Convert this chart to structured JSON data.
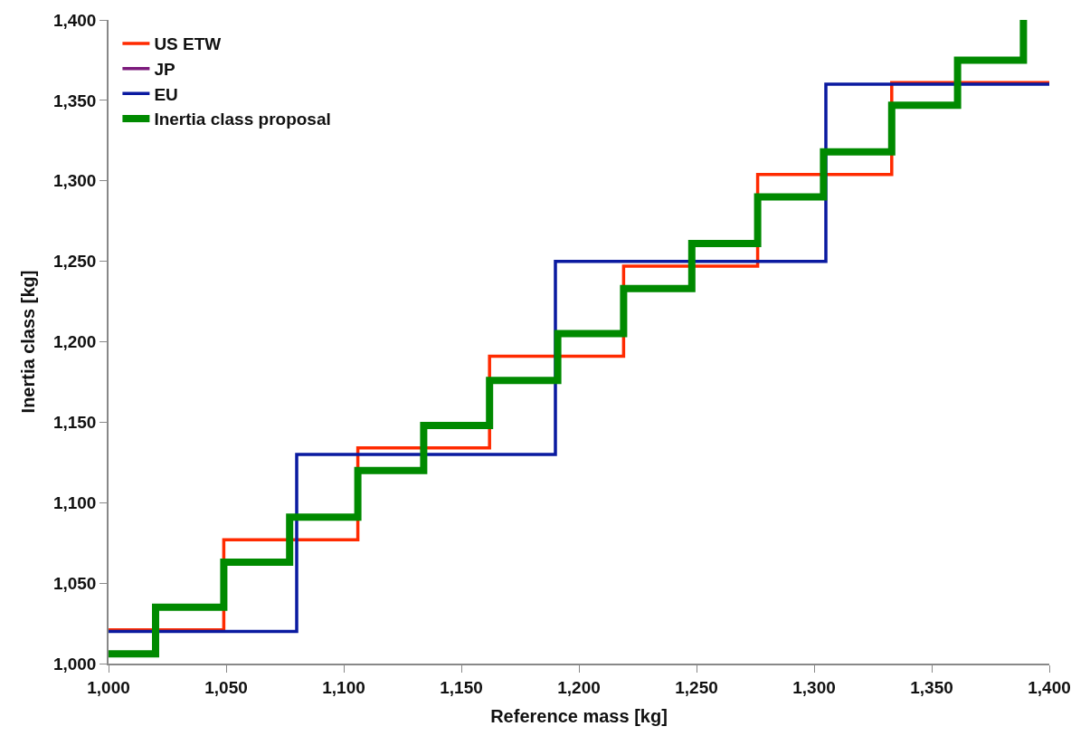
{
  "chart_data": {
    "type": "step",
    "xlabel": "Reference mass [kg]",
    "ylabel": "Inertia class [kg]",
    "xlim": [
      1000,
      1400
    ],
    "xticks": [
      {
        "value": 1000,
        "label": "1,000"
      },
      {
        "value": 1050,
        "label": "1,050"
      },
      {
        "value": 1100,
        "label": "1,100"
      },
      {
        "value": 1150,
        "label": "1,150"
      },
      {
        "value": 1200,
        "label": "1,200"
      },
      {
        "value": 1250,
        "label": "1,250"
      },
      {
        "value": 1300,
        "label": "1,300"
      },
      {
        "value": 1350,
        "label": "1,350"
      },
      {
        "value": 1400,
        "label": "1,400"
      }
    ],
    "ylim": [
      1000,
      1400
    ],
    "yticks": [
      {
        "value": 1000,
        "label": "1,000"
      },
      {
        "value": 1050,
        "label": "1,050"
      },
      {
        "value": 1100,
        "label": "1,100"
      },
      {
        "value": 1150,
        "label": "1,150"
      },
      {
        "value": 1200,
        "label": "1,200"
      },
      {
        "value": 1250,
        "label": "1,250"
      },
      {
        "value": 1300,
        "label": "1,300"
      },
      {
        "value": 1350,
        "label": "1,350"
      },
      {
        "value": 1400,
        "label": "1,400"
      }
    ],
    "legend": "top left",
    "marker": "none",
    "line_style": "solid",
    "series": [
      {
        "name": "US ETW",
        "color": "#ff2a00",
        "x": [
          1000,
          1049,
          1106,
          1162,
          1219,
          1276,
          1333,
          1400
        ],
        "values": [
          1021,
          1077,
          1134,
          1191,
          1247,
          1304,
          1361,
          1361
        ]
      },
      {
        "name": "JP",
        "color": "#7b1a7b"
      },
      {
        "name": "EU",
        "color": "#0a1aa0",
        "x": [
          1000,
          1080,
          1190,
          1305,
          1400
        ],
        "values": [
          1020,
          1130,
          1250,
          1360,
          1360
        ]
      },
      {
        "name": "Inertia class proposal",
        "color": "#008a00",
        "x": [
          1000,
          1020,
          1049,
          1077,
          1106,
          1134,
          1162,
          1191,
          1219,
          1248,
          1276,
          1304,
          1333,
          1361,
          1389
        ],
        "values": [
          1006,
          1035,
          1063,
          1091,
          1120,
          1148,
          1176,
          1205,
          1233,
          1261,
          1290,
          1318,
          1347,
          1375,
          1400
        ]
      }
    ]
  }
}
